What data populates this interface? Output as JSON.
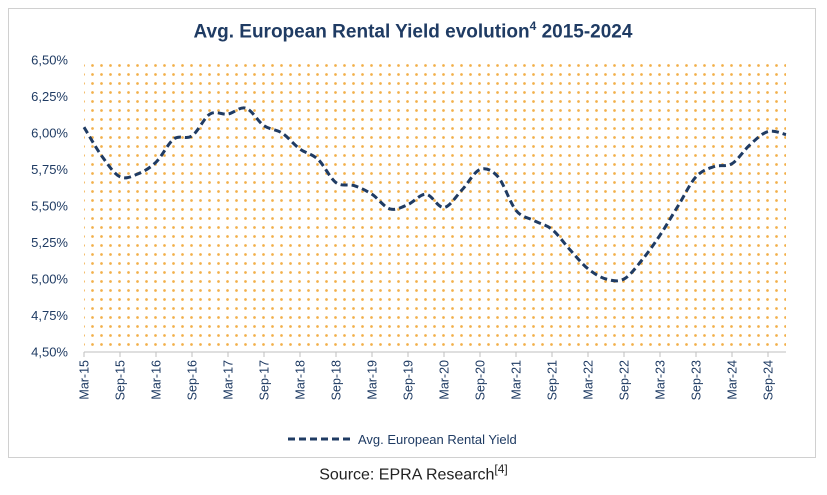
{
  "chart_data": {
    "type": "line",
    "title": "Avg. European Rental Yield evolution",
    "title_superscript": "4",
    "title_suffix": " 2015-2024",
    "ylim": [
      4.5,
      6.5
    ],
    "y_ticks": [
      "6,50%",
      "6,25%",
      "6,00%",
      "5,75%",
      "5,50%",
      "5,25%",
      "5,00%",
      "4,75%",
      "4,50%"
    ],
    "y_tick_values": [
      6.5,
      6.25,
      6.0,
      5.75,
      5.5,
      5.25,
      5.0,
      4.75,
      4.5
    ],
    "categories": [
      "Mar-15",
      "Sep-15",
      "Mar-16",
      "Sep-16",
      "Mar-17",
      "Sep-17",
      "Mar-18",
      "Sep-18",
      "Mar-19",
      "Sep-19",
      "Mar-20",
      "Sep-20",
      "Mar-21",
      "Sep-21",
      "Mar-22",
      "Sep-22",
      "Mar-23",
      "Sep-23",
      "Mar-24",
      "Sep-24"
    ],
    "series": [
      {
        "name": "Avg. European Rental Yield",
        "color": "#1f3b63",
        "points": [
          [
            0,
            6.04
          ],
          [
            0.5,
            5.84
          ],
          [
            1,
            5.7
          ],
          [
            1.5,
            5.72
          ],
          [
            2,
            5.8
          ],
          [
            2.5,
            5.96
          ],
          [
            3,
            5.98
          ],
          [
            3.5,
            6.13
          ],
          [
            4,
            6.13
          ],
          [
            4.5,
            6.17
          ],
          [
            5,
            6.05
          ],
          [
            5.5,
            6.0
          ],
          [
            6,
            5.89
          ],
          [
            6.5,
            5.82
          ],
          [
            7,
            5.66
          ],
          [
            7.5,
            5.64
          ],
          [
            8,
            5.58
          ],
          [
            8.5,
            5.48
          ],
          [
            9,
            5.51
          ],
          [
            9.5,
            5.58
          ],
          [
            10,
            5.49
          ],
          [
            10.5,
            5.61
          ],
          [
            11,
            5.75
          ],
          [
            11.5,
            5.7
          ],
          [
            12,
            5.47
          ],
          [
            12.5,
            5.4
          ],
          [
            13,
            5.34
          ],
          [
            13.5,
            5.2
          ],
          [
            14,
            5.07
          ],
          [
            14.5,
            5.0
          ],
          [
            15,
            5.0
          ],
          [
            15.5,
            5.13
          ],
          [
            16,
            5.3
          ],
          [
            16.5,
            5.5
          ],
          [
            17,
            5.7
          ],
          [
            17.5,
            5.77
          ],
          [
            18,
            5.79
          ],
          [
            18.5,
            5.92
          ],
          [
            19,
            6.01
          ],
          [
            19.5,
            5.99
          ]
        ]
      }
    ],
    "legend_position": "bottom",
    "grid": false,
    "background_pattern_color": "#f2b04a"
  },
  "source": {
    "label": "Source: EPRA Research",
    "ref": "[4]"
  }
}
